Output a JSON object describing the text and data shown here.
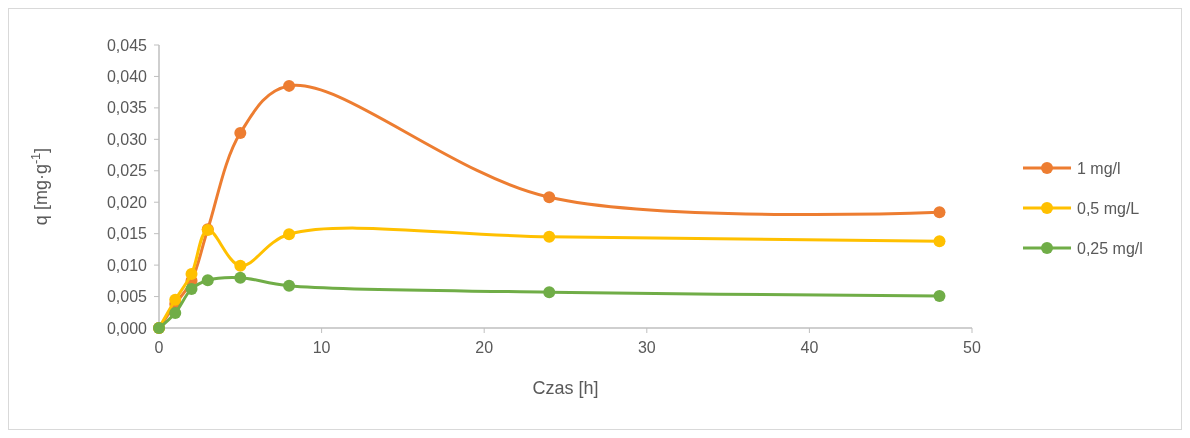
{
  "chart_data": {
    "type": "line",
    "xlabel": "Czas [h]",
    "ylabel": "q [mg·g$^{-1}$]",
    "x": [
      0,
      1,
      2,
      3,
      5,
      8,
      24,
      48
    ],
    "series": [
      {
        "name": "1 mg/l",
        "color": "#ed7d31",
        "values": [
          0,
          0.0038,
          0.0075,
          0.0157,
          0.031,
          0.0385,
          0.0208,
          0.0184
        ]
      },
      {
        "name": "0,5 mg/L",
        "color": "#ffc000",
        "values": [
          0,
          0.0045,
          0.0086,
          0.0156,
          0.0099,
          0.0149,
          0.0145,
          0.0138
        ]
      },
      {
        "name": "0,25 mg/l",
        "color": "#70ad47",
        "values": [
          0,
          0.0024,
          0.0062,
          0.0076,
          0.008,
          0.0067,
          0.0057,
          0.0051
        ]
      }
    ],
    "xlim": [
      0,
      50
    ],
    "xticks": [
      0,
      10,
      20,
      30,
      40,
      50
    ],
    "ylim": [
      0,
      0.045
    ],
    "yticks": [
      {
        "value": 0,
        "label": "0,000"
      },
      {
        "value": 0.005,
        "label": "0,005"
      },
      {
        "value": 0.01,
        "label": "0,010"
      },
      {
        "value": 0.015,
        "label": "0,015"
      },
      {
        "value": 0.02,
        "label": "0,020"
      },
      {
        "value": 0.025,
        "label": "0,025"
      },
      {
        "value": 0.03,
        "label": "0,030"
      },
      {
        "value": 0.035,
        "label": "0,035"
      },
      {
        "value": 0.04,
        "label": "0,040"
      },
      {
        "value": 0.045,
        "label": "0,045"
      }
    ],
    "grid": false,
    "legend": "right",
    "marker": "circle",
    "line_style": "solid"
  }
}
